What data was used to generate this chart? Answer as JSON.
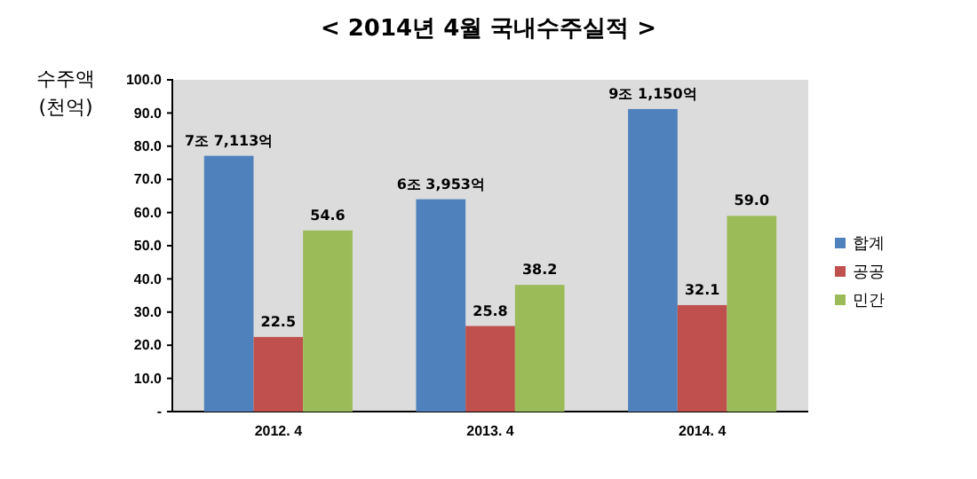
{
  "chart_data": {
    "type": "bar",
    "title": "< 2014년 4월 국내수주실적 >",
    "ylabel": "수주액\n(천억)",
    "categories": [
      "2012. 4",
      "2013. 4",
      "2014. 4"
    ],
    "series": [
      {
        "name": "합계",
        "color": "#4f81bd",
        "values": [
          77.1,
          64.0,
          91.2
        ]
      },
      {
        "name": "공공",
        "color": "#c0504d",
        "values": [
          22.5,
          25.8,
          32.1
        ],
        "value_labels": [
          "22.5",
          "25.8",
          "32.1"
        ]
      },
      {
        "name": "민간",
        "color": "#9bbb59",
        "values": [
          54.6,
          38.2,
          59.0
        ],
        "value_labels": [
          "54.6",
          "38.2",
          "59.0"
        ]
      }
    ],
    "ylim": [
      0,
      100
    ],
    "yticks": [
      {
        "value": 0,
        "label": "-"
      },
      {
        "value": 10,
        "label": "10.0"
      },
      {
        "value": 20,
        "label": "20.0"
      },
      {
        "value": 30,
        "label": "30.0"
      },
      {
        "value": 40,
        "label": "40.0"
      },
      {
        "value": 50,
        "label": "50.0"
      },
      {
        "value": 60,
        "label": "60.0"
      },
      {
        "value": 70,
        "label": "70.0"
      },
      {
        "value": 80,
        "label": "80.0"
      },
      {
        "value": 90,
        "label": "90.0"
      },
      {
        "value": 100,
        "label": "100.0"
      }
    ],
    "annotations": [
      "7조 7,113억",
      "6조 3,953억",
      "9조 1,150억"
    ],
    "grid": false,
    "legend": "right"
  }
}
